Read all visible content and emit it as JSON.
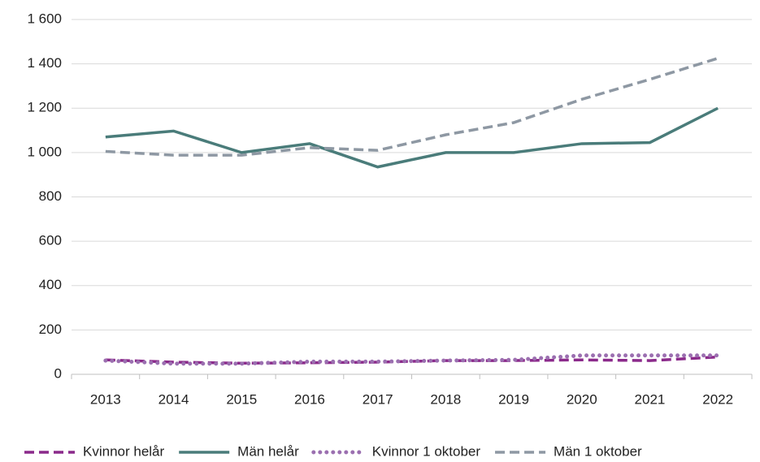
{
  "chart_data": {
    "type": "line",
    "categories": [
      "2013",
      "2014",
      "2015",
      "2016",
      "2017",
      "2018",
      "2019",
      "2020",
      "2021",
      "2022"
    ],
    "series": [
      {
        "name": "Kvinnor helår",
        "color": "#8b2a8b",
        "dash": "dashed",
        "values": [
          65,
          55,
          50,
          52,
          55,
          62,
          62,
          65,
          62,
          78
        ]
      },
      {
        "name": "Män helår",
        "color": "#4a7c7a",
        "dash": "solid",
        "values": [
          1070,
          1097,
          1000,
          1040,
          935,
          1000,
          1000,
          1040,
          1045,
          1200
        ]
      },
      {
        "name": "Kvinnor 1 oktober",
        "color": "#9b6fb0",
        "dash": "dotted",
        "values": [
          62,
          48,
          48,
          57,
          57,
          62,
          65,
          85,
          85,
          85
        ]
      },
      {
        "name": "Män 1 oktober",
        "color": "#8e98a3",
        "dash": "dashed",
        "values": [
          1005,
          988,
          988,
          1022,
          1010,
          1080,
          1135,
          1240,
          1330,
          1425
        ]
      }
    ],
    "ylim": [
      0,
      1600
    ],
    "yticks": [
      0,
      200,
      400,
      600,
      800,
      {
        "value": 1000,
        "label": "1 000"
      },
      {
        "value": 1200,
        "label": "1 200"
      },
      {
        "value": 1400,
        "label": "1 400"
      },
      {
        "value": 1600,
        "label": "1 600"
      }
    ],
    "grid": true,
    "legend": "bottom"
  }
}
